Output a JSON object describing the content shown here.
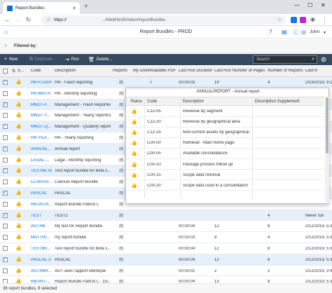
{
  "browser": {
    "tab_title": "Report Bundles",
    "url_prefix": "https://",
    "url_path": ".../WebHtml5/index#reportBundles",
    "win_min": "—",
    "win_max": "☐",
    "win_close": "✕"
  },
  "shell": {
    "title": "Report Bundles - PROD",
    "user": "John"
  },
  "filter": {
    "label": "Filtered by:"
  },
  "toolbar": {
    "new": "New",
    "duplicate": "Duplicate...",
    "run": "Run",
    "delete": "Delete...",
    "search_placeholder": "Search"
  },
  "columns": {
    "status": "S...",
    "code": "Code",
    "description": "Description",
    "reports": "Reports",
    "pdf": "My Downloadable PDF",
    "last_run_duration": "Last Run Duration",
    "last_run_pages": "Last Run Number of Pages",
    "num_reports": "Number of Reports",
    "last_run": "Last R"
  },
  "rows": [
    {
      "code": "HR-FLASH",
      "desc": "HR - Flash reporting",
      "duration": "00:00:03",
      "pages": "19",
      "nreports": "4",
      "lastrun": "2/19/2019, 9:22",
      "selected": true,
      "checked": true
    },
    {
      "code": "HR-MNTH",
      "desc": "HR - Monthly reporting",
      "duration": "",
      "pages": "",
      "nreports": "",
      "lastrun": "",
      "selected": false,
      "checked": false
    },
    {
      "code": "MNGT-F...",
      "desc": "Management - Flash Reporting",
      "duration": "",
      "pages": "",
      "nreports": "",
      "lastrun": "",
      "selected": true,
      "checked": true
    },
    {
      "code": "MNGT-Y...",
      "desc": "Management - Yearly reporting",
      "duration": "",
      "pages": "",
      "nreports": "",
      "lastrun": "",
      "selected": false,
      "checked": false
    },
    {
      "code": "MNGT-Q...",
      "desc": "Management - Quaterly report...",
      "duration": "",
      "pages": "",
      "nreports": "",
      "lastrun": "",
      "selected": true,
      "checked": true
    },
    {
      "code": "HR-YEA...",
      "desc": "HR - Yearly reporting",
      "duration": "",
      "pages": "",
      "nreports": "",
      "lastrun": "",
      "selected": false,
      "checked": false
    },
    {
      "code": "ANNUAL...",
      "desc": "Annual report",
      "duration": "",
      "pages": "",
      "nreports": "",
      "lastrun": "",
      "selected": true,
      "checked": true
    },
    {
      "code": "LEGAL-...",
      "desc": "Legal - Monthly reporting",
      "duration": "",
      "pages": "",
      "nreports": "",
      "lastrun": "",
      "selected": false,
      "checked": false
    },
    {
      "code": "TESTBETA",
      "desc": "Test report bundle for Beta s...",
      "duration": "",
      "pages": "",
      "nreports": "",
      "lastrun": "",
      "selected": true,
      "checked": true
    },
    {
      "code": "CLARISS...",
      "desc": "Clarisse Report Bundle",
      "duration": "",
      "pages": "",
      "nreports": "",
      "lastrun": "",
      "selected": false,
      "checked": false
    },
    {
      "code": "PASCAL",
      "desc": "PASCAL",
      "duration": "",
      "pages": "",
      "nreports": "",
      "lastrun": "",
      "selected": true,
      "checked": true
    },
    {
      "code": "RB-PATR...",
      "desc": "Report Bundle Patrick L",
      "duration": "",
      "pages": "",
      "nreports": "",
      "lastrun": "",
      "selected": false,
      "checked": false
    },
    {
      "code": "TEST",
      "desc": "TEST2",
      "duration": "",
      "pages": "",
      "nreports": "4",
      "lastrun": "Never run",
      "selected": true,
      "checked": true
    },
    {
      "code": "AGTRB",
      "desc": "My test for Report Bundle",
      "duration": "00:00:04",
      "pages": "12",
      "nreports": "8",
      "lastrun": "2/12/2019, 5:36",
      "selected": false,
      "checked": false
    },
    {
      "code": "MATTHI...",
      "desc": "my report bundle",
      "duration": "00:00:03",
      "pages": "9",
      "nreports": "4",
      "lastrun": "2/12/2019, 5:36",
      "selected": false,
      "checked": false
    },
    {
      "code": "TESTBE...",
      "desc": "Test report bundle for Beta s...",
      "duration": "00:00:04",
      "pages": "12",
      "nreports": "8",
      "lastrun": "2/12/2019, 5:36",
      "selected": false,
      "checked": false
    },
    {
      "code": "PASCAL-3",
      "desc": "PASCAL",
      "duration": "00:00:04",
      "pages": "12",
      "nreports": "8",
      "lastrun": "2/12/2019, 5:36",
      "selected": true,
      "checked": true
    },
    {
      "code": "AGTRBR...",
      "desc": "AGT avec rapport identique",
      "duration": "00:00:01",
      "pages": "2",
      "nreports": "2",
      "lastrun": "2/12/2019, 3:43",
      "selected": false,
      "checked": false
    },
    {
      "code": "RB-PAT-...",
      "desc": "Report Bundle Patrick L - Du...",
      "duration": "00:00:04",
      "pages": "13",
      "nreports": "8",
      "lastrun": "2/12/2019, 5:36",
      "selected": false,
      "checked": false
    }
  ],
  "popover": {
    "title": "ANNUALREPORT - Annual report",
    "cols": {
      "status": "Status",
      "code": "Code",
      "description": "Description",
      "supplement": "Description Supplement"
    },
    "rows": [
      {
        "code": "C12-05",
        "desc": "Revenue by segment"
      },
      {
        "code": "C12-20",
        "desc": "Revenue by geographical area"
      },
      {
        "code": "C12-25",
        "desc": "Non-current assets by geographical ..."
      },
      {
        "code": "C00-00",
        "desc": "Retrieval - Main home page"
      },
      {
        "code": "C00-05",
        "desc": "Available consolidations"
      },
      {
        "code": "C00-10",
        "desc": "Package process follow up"
      },
      {
        "code": "C00-15",
        "desc": "Scope data retrieval"
      },
      {
        "code": "C00-20",
        "desc": "Scope data used in a consolidation"
      }
    ]
  },
  "footer": {
    "text": "36 report bundles, 9 selected"
  },
  "colors": {
    "shell_toolbar": "#354a5f",
    "link": "#0a6ed1",
    "selected_row": "#e5f0fa",
    "status_ok": "#2b7c2b"
  }
}
